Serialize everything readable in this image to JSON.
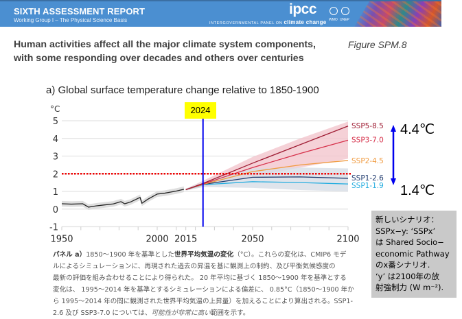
{
  "header": {
    "report_title": "SIXTH ASSESSMENT REPORT",
    "report_subtitle": "Working Group I – The Physical Science Basis",
    "logo_text": "ipcc",
    "logo_tagline_prefix": "INTERGOVERNMENTAL PANEL ON ",
    "logo_tagline_emph": "climate change",
    "partner_logos": [
      {
        "icon": "wmo-emblem-icon",
        "label": "WMO"
      },
      {
        "icon": "unep-emblem-icon",
        "label": "UNEP"
      }
    ],
    "colors": {
      "band": "#4b8fd1",
      "text": "#ffffff"
    }
  },
  "slide": {
    "title_line1": "Human activities affect all the major climate system components,",
    "title_line2": "with some responding over decades and others over centuries",
    "figure_label": "Figure SPM.8"
  },
  "annotations": {
    "current_year_label": "2024",
    "current_year": 2024,
    "range_high": "4.4℃",
    "range_low": "1.4℃",
    "threshold_c": 2,
    "arrow_icon": "double-headed-arrow-icon",
    "colors": {
      "year_line": "#0000ee",
      "year_box": "#ffff00",
      "threshold": "#ee0000",
      "arrow": "#0000ee"
    }
  },
  "note_box": {
    "lines": [
      "新しいシナリオ：",
      "SSPx−y: ‘SSPx’",
      "は Shared Socio−",
      "economic Pathway",
      "のx番シナリオ.",
      "‘y’ は2100年の放",
      "射強制力 (W m⁻²)."
    ]
  },
  "caption": {
    "l1_bold_a": "パネル a）",
    "l1_text_a": "1850～1900 年を基準とした",
    "l1_bold_b": "世界平均気温の変化",
    "l1_text_b": "（°C）。これらの変化は、CMIP6 モデ",
    "l2": "ルによるシミュレーションに、再現された過去の昇温を基に観測上の制約、及び平衡気候感度の",
    "l3": "最新の評価を組み合わせることにより得られた。 20 年平均に基づく 1850～1900 年を基準とする",
    "l4": "変化は、 1995～2014 年を基準とするシミュレーションによる偏差に、 0.85°C（1850～1900 年か",
    "l5": "ら 1995～2014 年の間に観測された世界平均気温の上昇量）を加えることにより算出される。SSP1-",
    "l6_text": "2.6 及び SSP3-7.0 については、",
    "l6_italic": "可能性が非常に高い",
    "l6_end": "範囲を示す。"
  },
  "chart_data": {
    "type": "line",
    "title": "a) Global surface temperature change relative to 1850-1900",
    "ylabel": "°C",
    "xlabel": "",
    "xlim": [
      1950,
      2100
    ],
    "ylim": [
      -1,
      5
    ],
    "grid": true,
    "x_tick_labels": [
      1950,
      2000,
      2015,
      2050,
      2100
    ],
    "x_minor_step": 10,
    "y_ticks": [
      -1,
      0,
      1,
      2,
      3,
      4,
      5
    ],
    "legend_placement": "right (inline labels at line ends)",
    "historical": {
      "name": "Observed/simulated historical",
      "color": "#222222",
      "band_color": "#d9d9d9",
      "x": [
        1950,
        1955,
        1961,
        1964,
        1968,
        1972,
        1977,
        1981,
        1983,
        1986,
        1991,
        1992,
        1995,
        2000,
        2004,
        2007,
        2010,
        2014
      ],
      "y": [
        0.3,
        0.28,
        0.3,
        0.11,
        0.18,
        0.23,
        0.29,
        0.42,
        0.3,
        0.4,
        0.66,
        0.33,
        0.55,
        0.85,
        0.9,
        0.96,
        1.02,
        1.12
      ],
      "band_halfwidth": 0.16
    },
    "series": [
      {
        "name": "SSP5-8.5",
        "color": "#9e1b32",
        "x": [
          2015,
          2024,
          2050,
          2075,
          2100
        ],
        "values": [
          1.1,
          1.45,
          2.6,
          3.65,
          4.7
        ]
      },
      {
        "name": "SSP3-7.0",
        "color": "#d6304a",
        "x": [
          2015,
          2024,
          2050,
          2075,
          2100
        ],
        "values": [
          1.1,
          1.42,
          2.35,
          3.15,
          3.9
        ],
        "range_low": [
          1.05,
          1.25,
          1.85,
          2.35,
          2.85
        ],
        "range_high": [
          1.15,
          1.6,
          2.95,
          4.0,
          4.95
        ],
        "range_color": "#f3c6cd"
      },
      {
        "name": "SSP2-4.5",
        "color": "#f09a3e",
        "x": [
          2015,
          2024,
          2050,
          2075,
          2100
        ],
        "values": [
          1.1,
          1.4,
          2.12,
          2.5,
          2.75
        ]
      },
      {
        "name": "SSP1-2.6",
        "color": "#1f3a6e",
        "x": [
          2015,
          2024,
          2050,
          2075,
          2100
        ],
        "values": [
          1.1,
          1.4,
          1.8,
          1.82,
          1.74
        ],
        "range_low": [
          1.05,
          1.25,
          1.2,
          1.08,
          1.0
        ],
        "range_high": [
          1.15,
          1.55,
          2.3,
          2.35,
          2.3
        ],
        "range_color": "#d7dde6"
      },
      {
        "name": "SSP1-1.9",
        "color": "#27aee0",
        "x": [
          2015,
          2024,
          2050,
          2075,
          2100
        ],
        "values": [
          1.1,
          1.38,
          1.55,
          1.5,
          1.42
        ]
      }
    ]
  }
}
